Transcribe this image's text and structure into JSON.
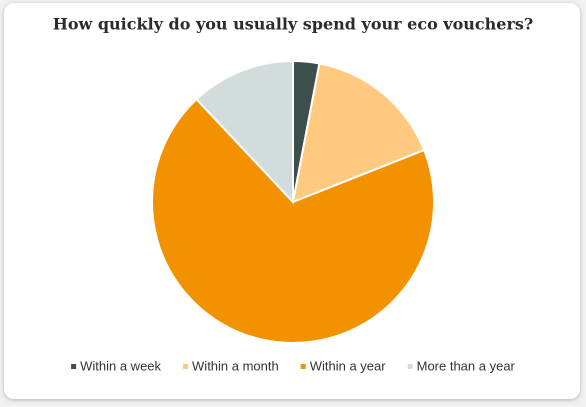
{
  "chart_data": {
    "type": "pie",
    "title": "How quickly do you usually spend your eco vouchers?",
    "categories": [
      "Within a week",
      "Within a month",
      "Within a year",
      "More than a year"
    ],
    "values": [
      3,
      16,
      69,
      12
    ],
    "colors": [
      "#3d4f4d",
      "#ffc97f",
      "#f39200",
      "#d3dcdc"
    ],
    "legend": "bottom"
  }
}
